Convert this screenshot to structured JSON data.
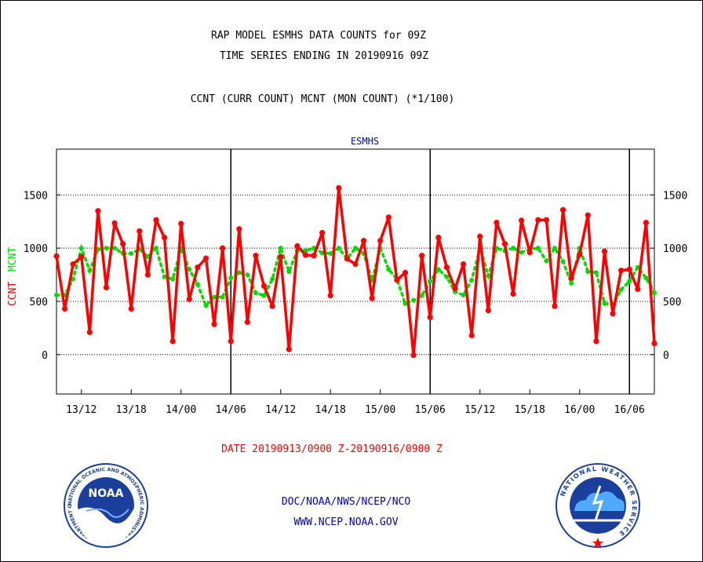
{
  "header": {
    "title_line1": "RAP MODEL ESMHS DATA COUNTS for 09Z",
    "title_line2": "TIME SERIES ENDING IN 20190916 09Z",
    "subtitle": "CCNT (CURR COUNT) MCNT (MON COUNT) (*1/100)"
  },
  "footer": {
    "date_range": "DATE 20190913/0900 Z-20190916/0900 Z",
    "agency": "DOC/NOAA/NWS/NCEP/NCO",
    "url": "WWW.NCEP.NOAA.GOV"
  },
  "logos": {
    "noaa_text": "NOAA",
    "noaa_ring": "NATIONAL OCEANIC AND ATMOSPHERIC ADMINISTRATION · U.S. DEPARTMENT OF COMMERCE ·",
    "nws_ring": "NATIONAL WEATHER SERVICE"
  },
  "colors": {
    "ccnt": "#ff0000",
    "mcnt": "#00dd00",
    "text_blue": "#0000cc",
    "axis": "#000000"
  },
  "chart_data": {
    "type": "line",
    "title": "ESMHS",
    "ylabel_ccnt": "CCNT",
    "ylabel_mcnt": "MCNT",
    "ylim": [
      -370,
      1930
    ],
    "yticks": [
      0,
      500,
      1000,
      1500
    ],
    "xlim": [
      0,
      72
    ],
    "xticks": [
      {
        "x": 3,
        "label": "13/12"
      },
      {
        "x": 9,
        "label": "13/18"
      },
      {
        "x": 15,
        "label": "14/00"
      },
      {
        "x": 21,
        "label": "14/06"
      },
      {
        "x": 27,
        "label": "14/12"
      },
      {
        "x": 33,
        "label": "14/18"
      },
      {
        "x": 39,
        "label": "15/00"
      },
      {
        "x": 45,
        "label": "15/06"
      },
      {
        "x": 51,
        "label": "15/12"
      },
      {
        "x": 57,
        "label": "15/18"
      },
      {
        "x": 63,
        "label": "16/00"
      },
      {
        "x": 69,
        "label": "16/06"
      }
    ],
    "day_boundaries": [
      21,
      45,
      69
    ],
    "grid": "horizontal dotted",
    "series": [
      {
        "name": "CCNT",
        "color": "#ff0000",
        "style": "solid",
        "values": [
          925,
          430,
          850,
          920,
          210,
          1350,
          630,
          1235,
          1040,
          430,
          1160,
          750,
          1265,
          1100,
          125,
          1230,
          520,
          820,
          905,
          285,
          1000,
          125,
          1180,
          305,
          930,
          645,
          455,
          920,
          50,
          1020,
          935,
          930,
          1145,
          555,
          1565,
          900,
          850,
          1070,
          530,
          1070,
          1290,
          700,
          770,
          -5,
          930,
          350,
          1100,
          820,
          620,
          850,
          180,
          1110,
          415,
          1240,
          1040,
          570,
          1260,
          960,
          1265,
          1265,
          455,
          1360,
          720,
          940,
          1310,
          125,
          970,
          385,
          790,
          800,
          615,
          1240,
          105
        ]
      },
      {
        "name": "MCNT",
        "color": "#00dd00",
        "style": "dotted",
        "values": [
          560,
          560,
          710,
          1000,
          790,
          990,
          1000,
          1000,
          950,
          950,
          990,
          920,
          1000,
          730,
          710,
          1000,
          800,
          660,
          460,
          540,
          540,
          720,
          770,
          750,
          580,
          555,
          710,
          1000,
          780,
          975,
          975,
          1000,
          955,
          950,
          1000,
          900,
          1000,
          950,
          700,
          1000,
          800,
          710,
          480,
          510,
          555,
          690,
          800,
          730,
          590,
          560,
          700,
          1000,
          740,
          1000,
          975,
          1000,
          960,
          990,
          1000,
          880,
          1000,
          875,
          670,
          1000,
          780,
          770,
          480,
          470,
          610,
          690,
          820,
          720,
          580
        ]
      }
    ]
  }
}
